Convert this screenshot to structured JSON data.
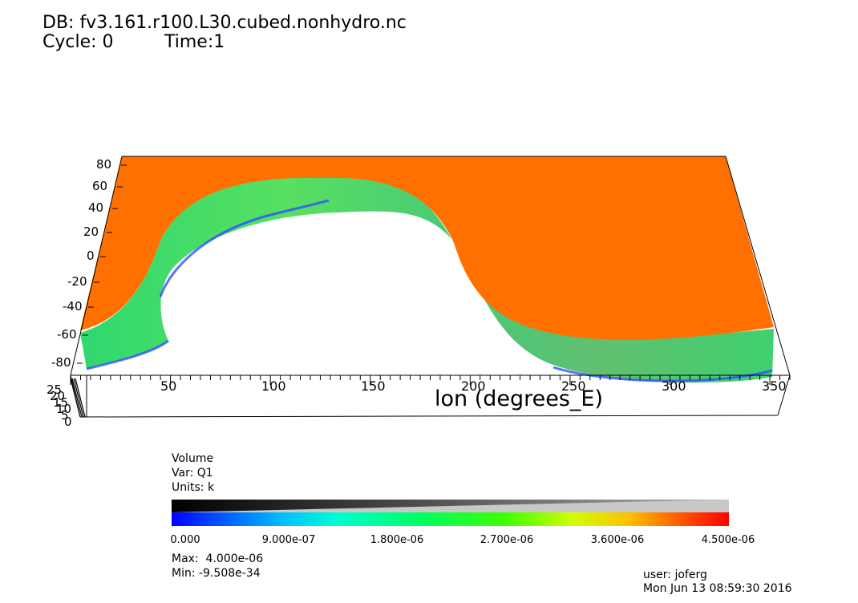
{
  "header": {
    "db_line": "DB: fv3.161.r100.L30.cubed.nonhydro.nc",
    "cycle_line": "Cycle: 0",
    "time_line": "Time:1"
  },
  "axes": {
    "y_ticks": [
      "80",
      "60",
      "40",
      "20",
      "0",
      "-20",
      "-40",
      "-60",
      "-80"
    ],
    "x_ticks": [
      "50",
      "100",
      "150",
      "200",
      "250",
      "300",
      "350"
    ],
    "x_title": "lon (degrees_E)",
    "z_ticks": [
      "25",
      "20",
      "15",
      "10",
      "5",
      "0"
    ]
  },
  "legend": {
    "title": "Volume",
    "var": "Var: Q1",
    "units": "Units: k",
    "ticks": [
      "0.000",
      "9.000e-07",
      "1.800e-06",
      "2.700e-06",
      "3.600e-06",
      "4.500e-06"
    ],
    "max": "Max:  4.000e-06",
    "min": "Min: -9.508e-34"
  },
  "footer": {
    "user": "user: joferg",
    "date": "Mon Jun 13 08:59:30 2016"
  },
  "colors": {
    "field": "#ff7000",
    "band_green": "#40e060",
    "edge_blue": "#3050ff"
  }
}
